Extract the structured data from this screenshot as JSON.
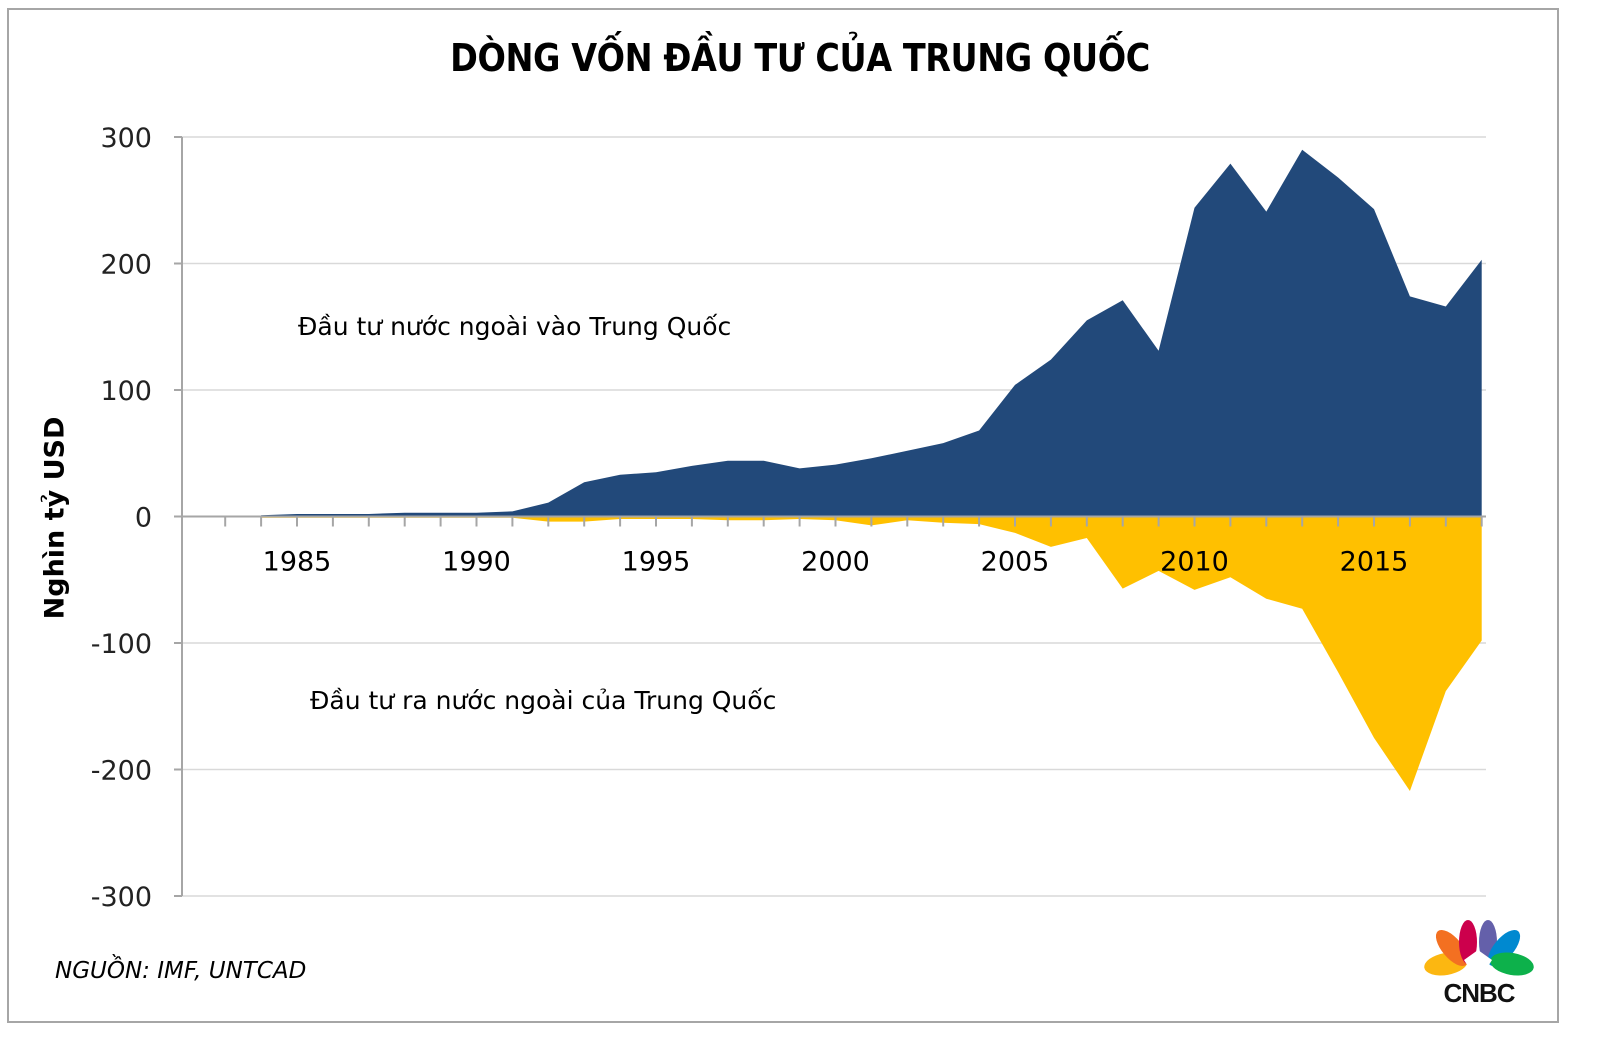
{
  "title": "DÒNG VỐN ĐẦU TƯ CỦA TRUNG QUỐC",
  "ylabel": "Nghìn tỷ USD",
  "source": "NGUỒN: IMF, UNTCAD",
  "annotations": {
    "inflow": "Đầu tư nước ngoài vào Trung Quốc",
    "outflow": "Đầu tư ra nước ngoài của Trung Quốc"
  },
  "logo": {
    "text": "CNBC",
    "icon": "cnbc-peacock-icon"
  },
  "colors": {
    "inflow": "#22497A",
    "outflow": "#FFC000",
    "grid": "#d9d9d9",
    "axis": "#a6a6a6"
  },
  "chart_data": {
    "type": "area",
    "title": "DÒNG VỐN ĐẦU TƯ CỦA TRUNG QUỐC",
    "xlabel": "",
    "ylabel": "Nghìn tỷ USD",
    "ylim": [
      -300,
      300
    ],
    "yticks": [
      300,
      200,
      100,
      0,
      -100,
      -200,
      -300
    ],
    "xtick_labels": [
      "1985",
      "1990",
      "1995",
      "2000",
      "2005",
      "2010",
      "2015"
    ],
    "grid": true,
    "legend_position": "inline-annotations",
    "x": [
      1984,
      1985,
      1986,
      1987,
      1988,
      1989,
      1990,
      1991,
      1992,
      1993,
      1994,
      1995,
      1996,
      1997,
      1998,
      1999,
      2000,
      2001,
      2002,
      2003,
      2004,
      2005,
      2006,
      2007,
      2008,
      2009,
      2010,
      2011,
      2012,
      2013,
      2014,
      2015,
      2016,
      2017,
      2018
    ],
    "series": [
      {
        "name": "Đầu tư nước ngoài vào Trung Quốc",
        "color": "#22497A",
        "values": [
          1,
          2,
          2,
          2,
          3,
          3,
          3,
          4,
          11,
          27,
          33,
          35,
          40,
          44,
          44,
          38,
          41,
          46,
          52,
          58,
          68,
          104,
          124,
          155,
          171,
          131,
          244,
          279,
          241,
          290,
          268,
          243,
          174,
          166,
          203
        ]
      },
      {
        "name": "Đầu tư ra nước ngoài của Trung Quốc",
        "color": "#FFC000",
        "values": [
          -1,
          -1,
          -1,
          -1,
          -1,
          -1,
          -1,
          -1,
          -4,
          -4,
          -2,
          -2,
          -2,
          -3,
          -3,
          -2,
          -3,
          -7,
          -3,
          -5,
          -6,
          -13,
          -24,
          -17,
          -57,
          -43,
          -58,
          -48,
          -65,
          -73,
          -123,
          -175,
          -217,
          -138,
          -98
        ]
      }
    ]
  }
}
